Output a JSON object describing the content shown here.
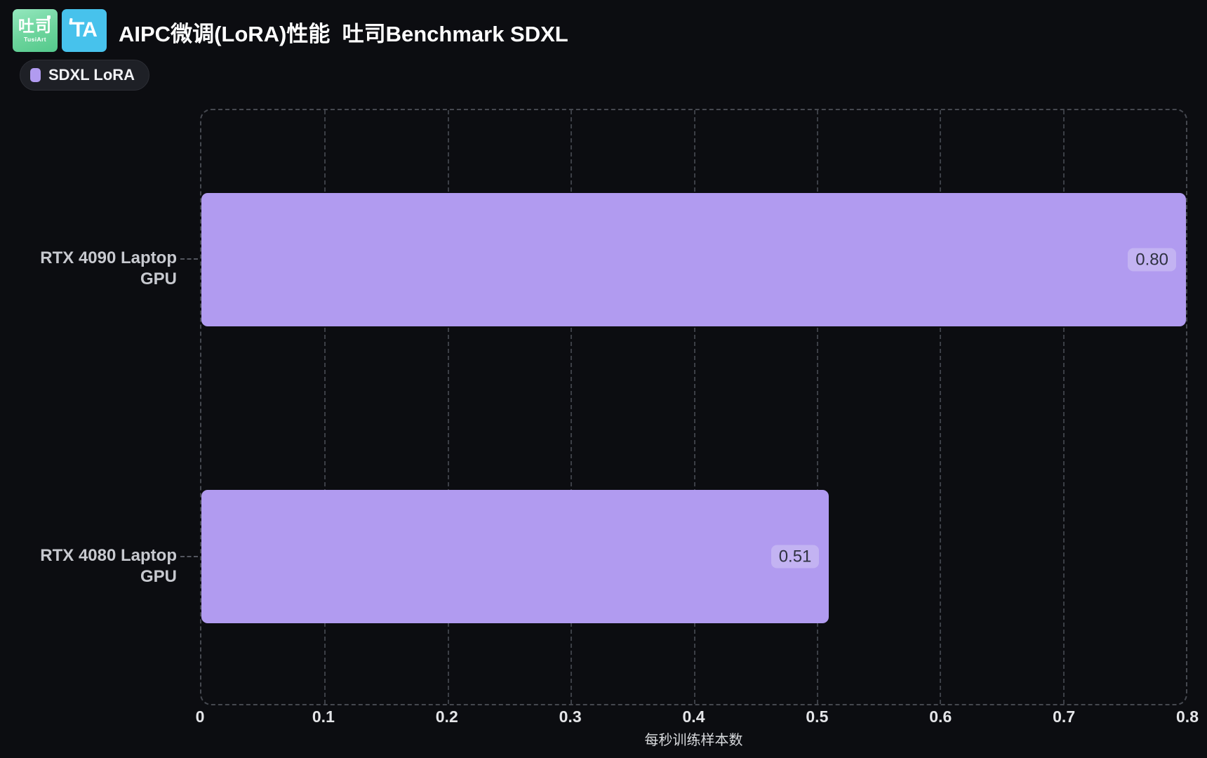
{
  "page": {
    "background": "#0c0d11"
  },
  "header": {
    "logo_tusiart": {
      "text": "吐司",
      "subtext": "TusiArt"
    },
    "logo_ta": {
      "text": "TA"
    },
    "title": "AIPC微调(LoRA)性能  吐司Benchmark SDXL"
  },
  "legend": {
    "items": [
      {
        "label": "SDXL LoRA",
        "color": "#b19bf0"
      }
    ],
    "position": "top-left"
  },
  "chart_data": {
    "type": "bar",
    "orientation": "horizontal",
    "title": "AIPC微调(LoRA)性能  吐司Benchmark SDXL",
    "series": [
      {
        "name": "SDXL LoRA",
        "color": "#b19bf0",
        "values": [
          0.8,
          0.51
        ]
      }
    ],
    "categories": [
      "RTX 4090 Laptop GPU",
      "RTX 4080 Laptop GPU"
    ],
    "values": [
      0.8,
      0.51
    ],
    "value_labels": [
      "0.80",
      "0.51"
    ],
    "xlabel": "每秒训练样本数",
    "ylabel": "",
    "xlim": [
      0,
      0.8
    ],
    "x_ticks": [
      "0",
      "0.1",
      "0.2",
      "0.3",
      "0.4",
      "0.5",
      "0.6",
      "0.7",
      "0.8"
    ],
    "grid": "vertical-dashed",
    "legend_position": "top-left",
    "colors": {
      "background": "#0c0d11",
      "bar": "#b19bf0",
      "value_chip_bg": "#c3b3f2",
      "value_chip_text": "#2e3140",
      "grid": "#3c3f46",
      "tick_label": "#e4e5e8",
      "category_label": "#c7c9cf"
    }
  }
}
